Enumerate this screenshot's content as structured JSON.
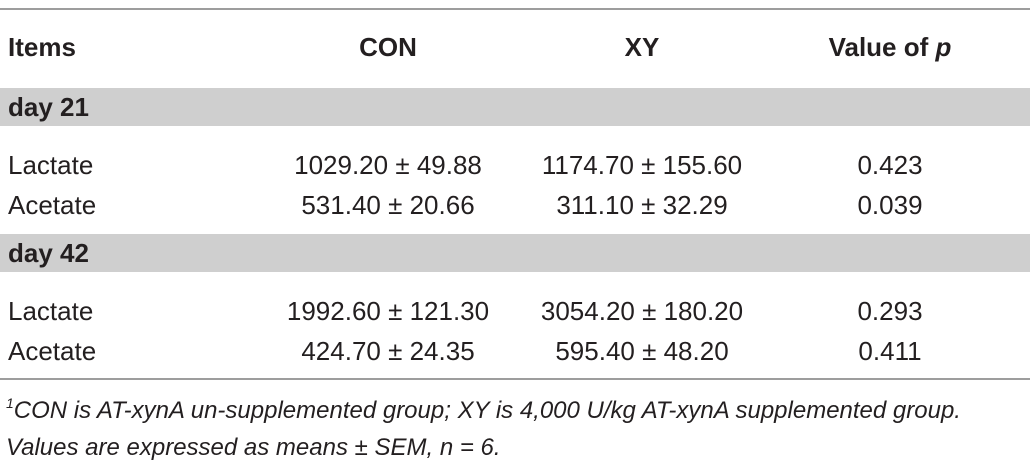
{
  "table": {
    "header": [
      "Items",
      "CON",
      "XY",
      {
        "text": "Value of",
        "emphasis": "p"
      }
    ],
    "sections": [
      {
        "label": "day 21",
        "rows": [
          [
            "Lactate",
            "1029.20 ± 49.88",
            "1174.70 ± 155.60",
            "0.423"
          ],
          [
            "Acetate",
            "531.40 ± 20.66",
            "311.10 ± 32.29",
            "0.039"
          ]
        ]
      },
      {
        "label": "day 42",
        "rows": [
          [
            "Lactate",
            "1992.60 ± 121.30",
            "3054.20 ± 180.20",
            "0.293"
          ],
          [
            "Acetate",
            "424.70 ± 24.35",
            "595.40 ± 48.20",
            "0.411"
          ]
        ]
      }
    ]
  },
  "footnote": {
    "marker": "1",
    "text": "CON is AT-xynA un-supplemented group; XY is 4,000 U/kg AT-xynA supplemented group. Values are expressed as means ± SEM, n = 6."
  }
}
